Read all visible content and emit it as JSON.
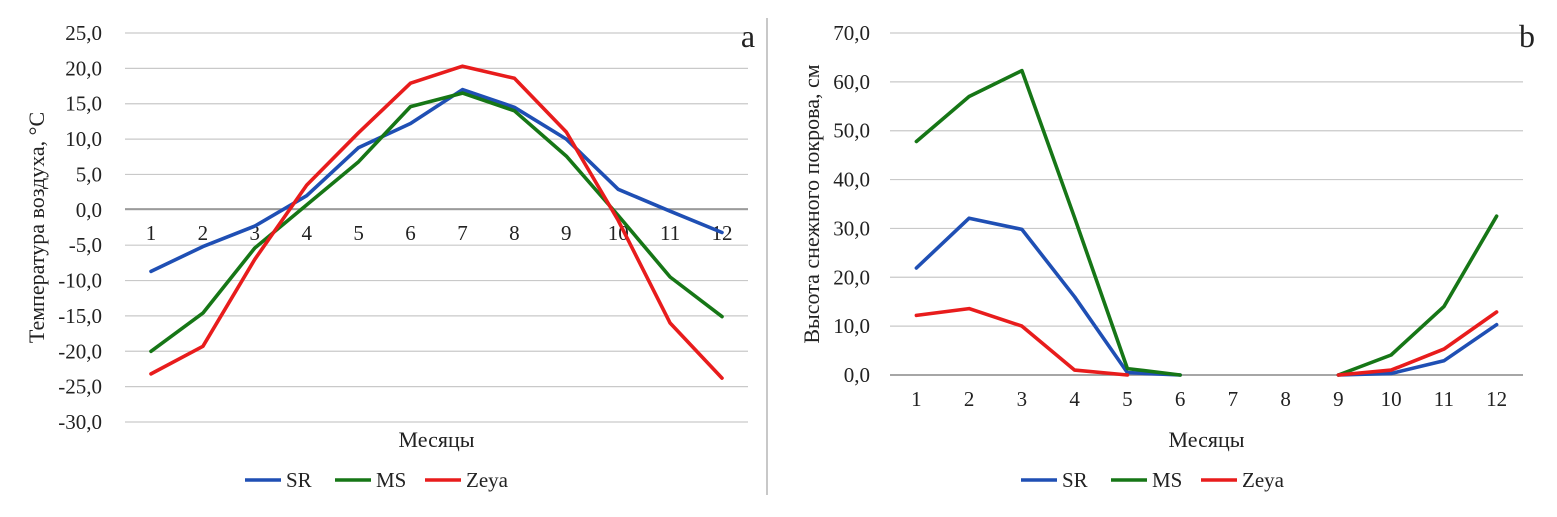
{
  "chart_data": [
    {
      "panel_label": "a",
      "type": "line",
      "title": "",
      "xlabel": "Месяцы",
      "ylabel": "Температура воздуха, °C",
      "categories": [
        "1",
        "2",
        "3",
        "4",
        "5",
        "6",
        "7",
        "8",
        "9",
        "10",
        "11",
        "12"
      ],
      "ylim": [
        -30,
        25
      ],
      "yticks": [
        "25,0",
        "20,0",
        "15,0",
        "10,0",
        "5,0",
        "0,0",
        "-5,0",
        "-10,0",
        "-15,0",
        "-20,0",
        "-25,0",
        "-30,0"
      ],
      "ytick_values": [
        25,
        20,
        15,
        10,
        5,
        0,
        -5,
        -10,
        -15,
        -20,
        -25,
        -30
      ],
      "grid": true,
      "legend_position": "bottom",
      "series": [
        {
          "name": "SR",
          "color": "#1f4fb4",
          "values": [
            -8.7,
            -5.2,
            -2.3,
            2.0,
            8.8,
            12.2,
            17.0,
            14.5,
            10.0,
            2.9,
            -0.2,
            -3.2
          ]
        },
        {
          "name": "MS",
          "color": "#167616",
          "values": [
            -20.0,
            -14.6,
            -5.4,
            0.7,
            6.8,
            14.6,
            16.5,
            14.0,
            7.6,
            -0.8,
            -9.5,
            -15.1
          ]
        },
        {
          "name": "Zeya",
          "color": "#e81c1c",
          "values": [
            -23.2,
            -19.3,
            -7.0,
            3.5,
            10.9,
            17.9,
            20.3,
            18.6,
            11.0,
            -1.5,
            -16.0,
            -23.8
          ]
        }
      ]
    },
    {
      "panel_label": "b",
      "type": "line",
      "title": "",
      "xlabel": "Месяцы",
      "ylabel": "Высота снежного покрова, см",
      "categories": [
        "1",
        "2",
        "3",
        "4",
        "5",
        "6",
        "7",
        "8",
        "9",
        "10",
        "11",
        "12"
      ],
      "ylim": [
        0,
        70
      ],
      "yticks": [
        "70,0",
        "60,0",
        "50,0",
        "40,0",
        "30,0",
        "20,0",
        "10,0",
        "0,0"
      ],
      "ytick_values": [
        70,
        60,
        50,
        40,
        30,
        20,
        10,
        0
      ],
      "grid": true,
      "legend_position": "bottom",
      "series": [
        {
          "name": "SR",
          "color": "#1f4fb4",
          "values": [
            21.9,
            32.1,
            29.8,
            16.0,
            0.5,
            0.0,
            null,
            null,
            0.0,
            0.3,
            2.9,
            10.3
          ]
        },
        {
          "name": "MS",
          "color": "#167616",
          "values": [
            47.8,
            57.0,
            62.3,
            32.2,
            1.3,
            0.0,
            null,
            null,
            0.0,
            4.1,
            14.0,
            32.5
          ]
        },
        {
          "name": "Zeya",
          "color": "#e81c1c",
          "values": [
            12.2,
            13.6,
            10.0,
            1.0,
            0.0,
            null,
            null,
            null,
            0.0,
            1.0,
            5.3,
            12.9
          ]
        }
      ]
    }
  ]
}
